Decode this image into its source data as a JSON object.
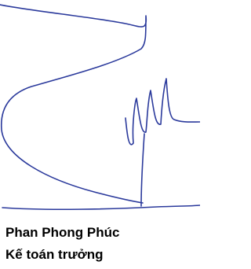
{
  "signature": {
    "name": "Phan Phong Phúc",
    "title": "Kế toán trưởng"
  }
}
